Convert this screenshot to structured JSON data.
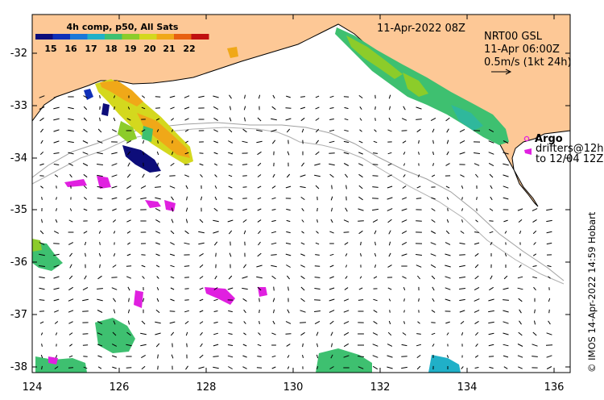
{
  "legend": {
    "title": "4h comp, p50, All Sats",
    "labels": [
      "15",
      "16",
      "17",
      "18",
      "19",
      "20",
      "21",
      "22"
    ],
    "colors": [
      "#0d0d7a",
      "#1030b8",
      "#1a78d8",
      "#20b0c8",
      "#3ec070",
      "#8ccc2a",
      "#d4d81e",
      "#f0a818",
      "#e86010",
      "#c01010"
    ]
  },
  "header": {
    "date": "11-Apr-2022 08Z",
    "product": "NRT00 GSL",
    "product_time": "11-Apr 06:00Z",
    "scale_label": "0.5m/s (1kt 24h)"
  },
  "argo": {
    "title": "Argo",
    "drifters_line1": "drifters@12h",
    "drifters_line2": "to 12/04 12Z",
    "color": "#e020e0"
  },
  "axes": {
    "x_ticks": [
      "124",
      "126",
      "128",
      "130",
      "132",
      "134",
      "136"
    ],
    "y_ticks": [
      "-32",
      "-33",
      "-34",
      "-35",
      "-36",
      "-37",
      "-38"
    ]
  },
  "credit": "© IMOS 14-Apr-2022 14:59 Hobart",
  "colors": {
    "land": "#fdc896",
    "ocean": "#ffffff",
    "contour": "#a0a0a0"
  }
}
